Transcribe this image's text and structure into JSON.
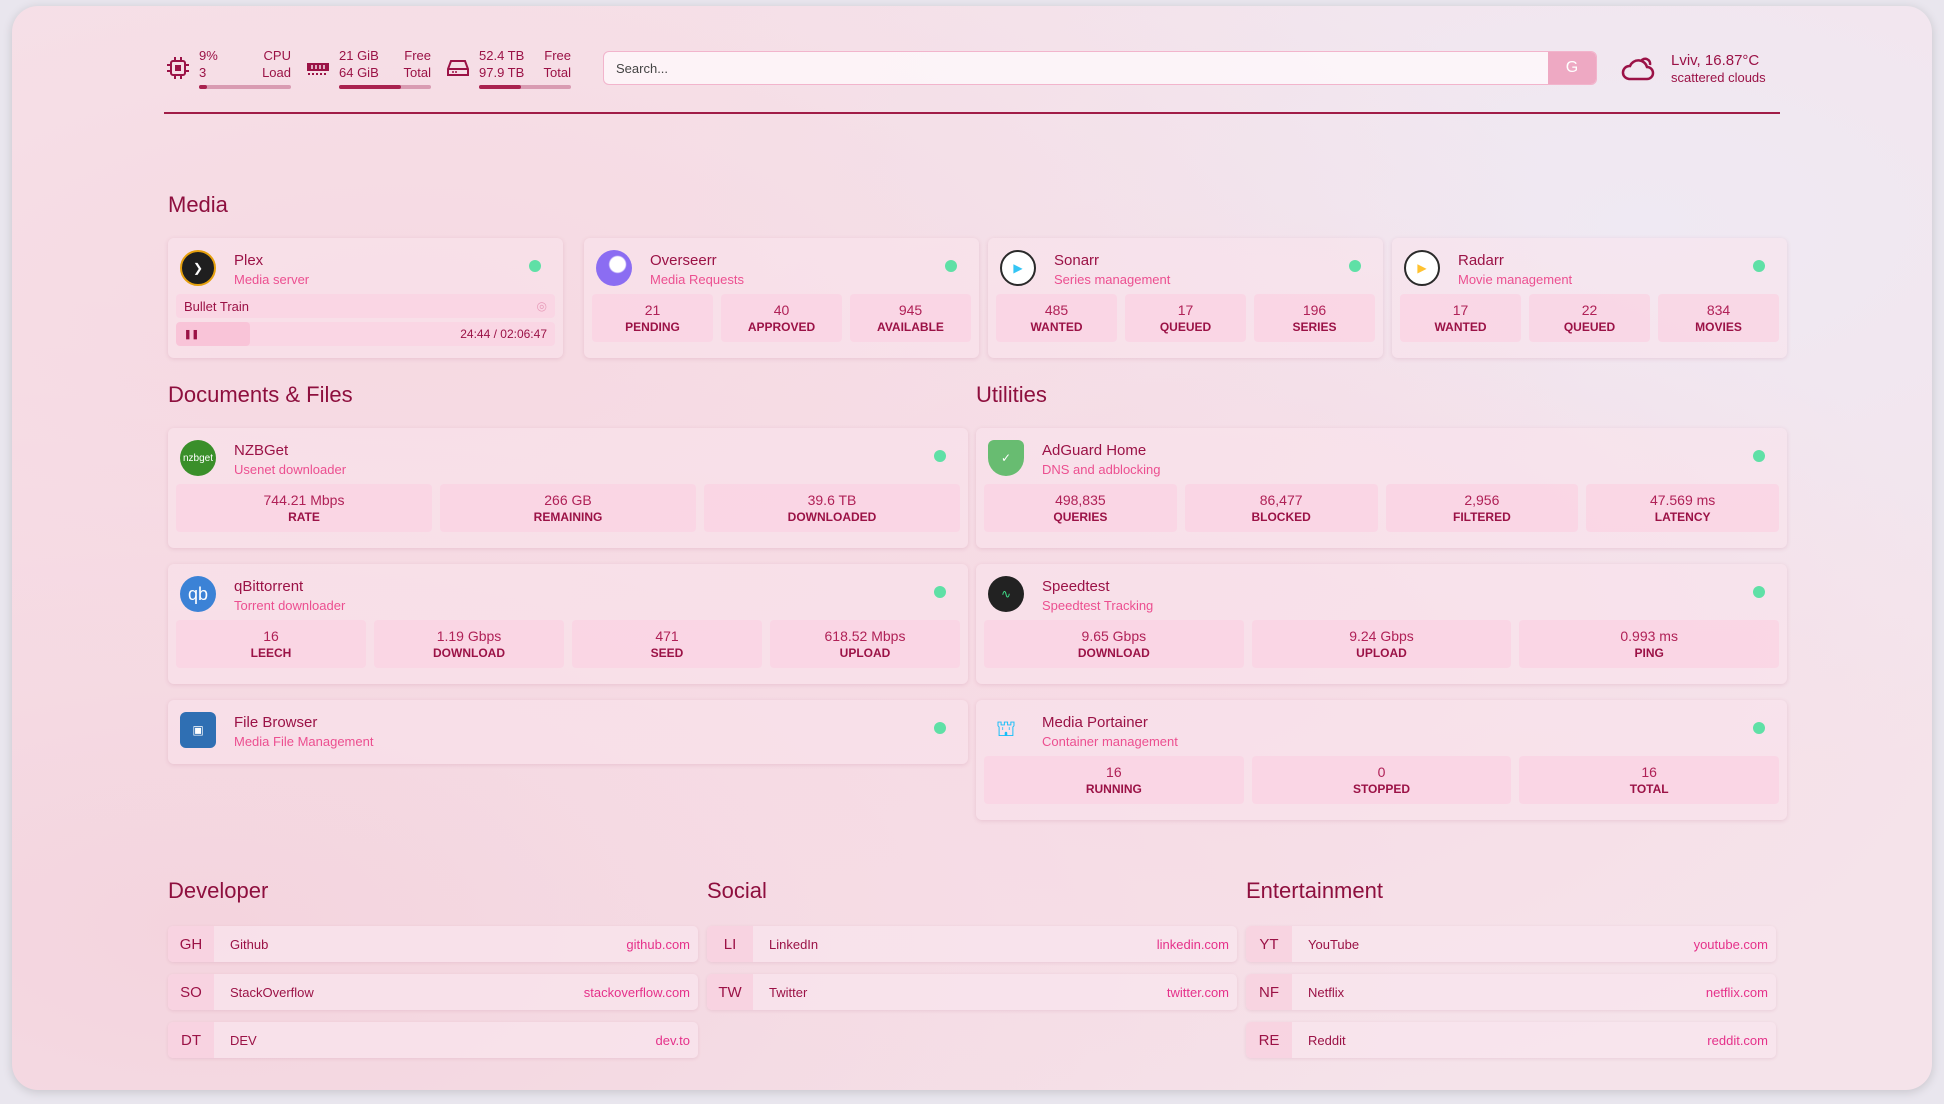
{
  "header": {
    "cpu": {
      "value": "9%",
      "sub": "3",
      "label1": "CPU",
      "label2": "Load",
      "fill": 0.09,
      "icon": "cpu-icon"
    },
    "memory": {
      "value": "21 GiB",
      "sub": "64 GiB",
      "label1": "Free",
      "label2": "Total",
      "fill": 0.67,
      "icon": "memory-icon"
    },
    "disk": {
      "value": "52.4 TB",
      "sub": "97.9 TB",
      "label1": "Free",
      "label2": "Total",
      "fill": 0.46,
      "icon": "disk-icon"
    },
    "search": {
      "placeholder": "Search...",
      "button": "G"
    },
    "weather": {
      "location": "Lviv, 16.87°C",
      "condition": "scattered clouds",
      "icon": "cloud-icon"
    }
  },
  "colors": {
    "accent": "#9b1246",
    "link": "#e5318a",
    "status_online": "#5fe0a6"
  },
  "sections": {
    "media": "Media",
    "documents": "Documents & Files",
    "utilities": "Utilities",
    "developer": "Developer",
    "social": "Social",
    "entertainment": "Entertainment"
  },
  "services": [
    {
      "name": "Plex",
      "desc": "Media server",
      "icon": "plex-icon",
      "nowplaying": {
        "title": "Bullet Train",
        "time": "24:44 / 02:06:47",
        "progress": 0.195
      }
    },
    {
      "name": "Overseerr",
      "desc": "Media Requests",
      "icon": "overseerr-icon",
      "stats": [
        {
          "v": "21",
          "l": "PENDING"
        },
        {
          "v": "40",
          "l": "APPROVED"
        },
        {
          "v": "945",
          "l": "AVAILABLE"
        }
      ]
    },
    {
      "name": "Sonarr",
      "desc": "Series management",
      "icon": "sonarr-icon",
      "stats": [
        {
          "v": "485",
          "l": "WANTED"
        },
        {
          "v": "17",
          "l": "QUEUED"
        },
        {
          "v": "196",
          "l": "SERIES"
        }
      ]
    },
    {
      "name": "Radarr",
      "desc": "Movie management",
      "icon": "radarr-icon",
      "stats": [
        {
          "v": "17",
          "l": "WANTED"
        },
        {
          "v": "22",
          "l": "QUEUED"
        },
        {
          "v": "834",
          "l": "MOVIES"
        }
      ]
    },
    {
      "name": "NZBGet",
      "desc": "Usenet downloader",
      "icon": "nzbget-icon",
      "icon_text": "nzbget",
      "stats": [
        {
          "v": "744.21 Mbps",
          "l": "RATE"
        },
        {
          "v": "266 GB",
          "l": "REMAINING"
        },
        {
          "v": "39.6 TB",
          "l": "DOWNLOADED"
        }
      ]
    },
    {
      "name": "qBittorrent",
      "desc": "Torrent downloader",
      "icon": "qbittorrent-icon",
      "icon_text": "qb",
      "stats": [
        {
          "v": "16",
          "l": "LEECH"
        },
        {
          "v": "1.19 Gbps",
          "l": "DOWNLOAD"
        },
        {
          "v": "471",
          "l": "SEED"
        },
        {
          "v": "618.52 Mbps",
          "l": "UPLOAD"
        }
      ]
    },
    {
      "name": "File Browser",
      "desc": "Media File Management",
      "icon": "filebrowser-icon"
    },
    {
      "name": "AdGuard Home",
      "desc": "DNS and adblocking",
      "icon": "adguard-icon",
      "stats": [
        {
          "v": "498,835",
          "l": "QUERIES"
        },
        {
          "v": "86,477",
          "l": "BLOCKED"
        },
        {
          "v": "2,956",
          "l": "FILTERED"
        },
        {
          "v": "47.569 ms",
          "l": "LATENCY"
        }
      ]
    },
    {
      "name": "Speedtest",
      "desc": "Speedtest Tracking",
      "icon": "speedtest-icon",
      "stats": [
        {
          "v": "9.65 Gbps",
          "l": "DOWNLOAD"
        },
        {
          "v": "9.24 Gbps",
          "l": "UPLOAD"
        },
        {
          "v": "0.993 ms",
          "l": "PING"
        }
      ]
    },
    {
      "name": "Media Portainer",
      "desc": "Container management",
      "icon": "portainer-icon",
      "stats": [
        {
          "v": "16",
          "l": "RUNNING"
        },
        {
          "v": "0",
          "l": "STOPPED"
        },
        {
          "v": "16",
          "l": "TOTAL"
        }
      ]
    }
  ],
  "bookmarks": {
    "developer": [
      {
        "abbr": "GH",
        "name": "Github",
        "url": "github.com"
      },
      {
        "abbr": "SO",
        "name": "StackOverflow",
        "url": "stackoverflow.com"
      },
      {
        "abbr": "DT",
        "name": "DEV",
        "url": "dev.to"
      }
    ],
    "social": [
      {
        "abbr": "LI",
        "name": "LinkedIn",
        "url": "linkedin.com"
      },
      {
        "abbr": "TW",
        "name": "Twitter",
        "url": "twitter.com"
      }
    ],
    "entertainment": [
      {
        "abbr": "YT",
        "name": "YouTube",
        "url": "youtube.com"
      },
      {
        "abbr": "NF",
        "name": "Netflix",
        "url": "netflix.com"
      },
      {
        "abbr": "RE",
        "name": "Reddit",
        "url": "reddit.com"
      }
    ]
  }
}
